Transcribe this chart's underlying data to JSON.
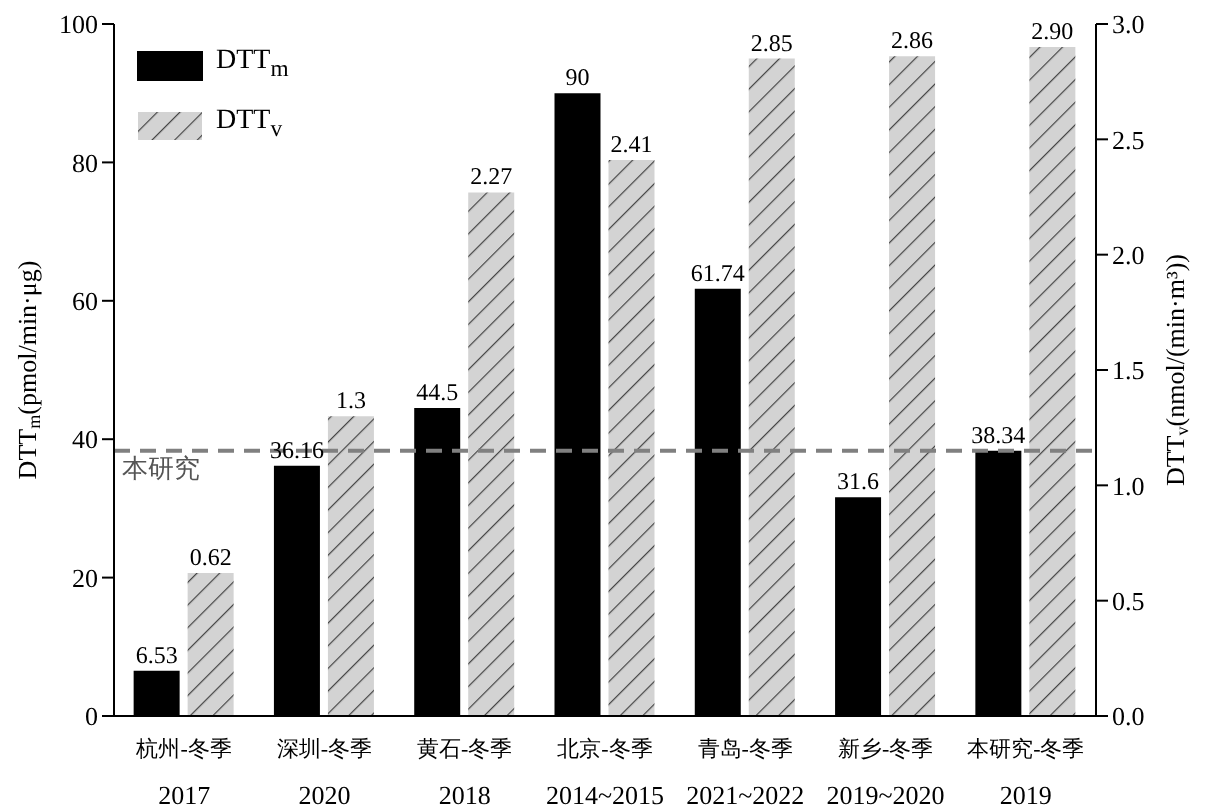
{
  "chart_data": {
    "type": "bar",
    "categories": [
      "杭州-冬季\n2017",
      "深圳-冬季\n2020",
      "黄石-冬季\n2018",
      "北京-冬季\n2014~2015",
      "青岛-冬季\n2021~2022",
      "新乡-冬季\n2019~2020",
      "本研究-冬季\n2019"
    ],
    "series": [
      {
        "name": "DTT$_{m}$",
        "color": "#000000",
        "values": [
          6.53,
          36.16,
          44.5,
          90,
          61.74,
          31.6,
          38.34
        ],
        "value_labels": [
          "6.53",
          "36.16",
          "44.5",
          "90",
          "61.74",
          "31.6",
          "38.34"
        ]
      },
      {
        "name": "DTT$_{v}$",
        "color": "#d3d3d3",
        "axis": "y2",
        "values": [
          0.62,
          1.3,
          2.27,
          2.41,
          2.85,
          2.86,
          2.9
        ],
        "value_labels": [
          "0.62",
          "1.3",
          "2.27",
          "2.41",
          "2.85",
          "2.86",
          "2.90"
        ]
      }
    ],
    "ylabel": "DTT$_{m}$(pmol/min·μg)",
    "y2label": "DTT$_{v}$(nmol/(min·m³))",
    "ylim": [
      0,
      100
    ],
    "yticks": [
      0,
      20,
      40,
      60,
      80,
      100
    ],
    "y2lim": [
      0,
      3
    ],
    "y2ticks": [
      {
        "value": 0,
        "label": "0.0"
      },
      {
        "value": 0.5,
        "label": "0.5"
      },
      {
        "value": 1,
        "label": "1.0"
      },
      {
        "value": 1.5,
        "label": "1.5"
      },
      {
        "value": 2,
        "label": "2.0"
      },
      {
        "value": 2.5,
        "label": "2.5"
      },
      {
        "value": 3,
        "label": "3.0"
      }
    ],
    "ref_lines": [
      {
        "axis": "y",
        "value": 38.34,
        "label": "本研究",
        "color": "#808080",
        "line_style": "dashed"
      }
    ],
    "legend": "top left",
    "grid": false
  }
}
